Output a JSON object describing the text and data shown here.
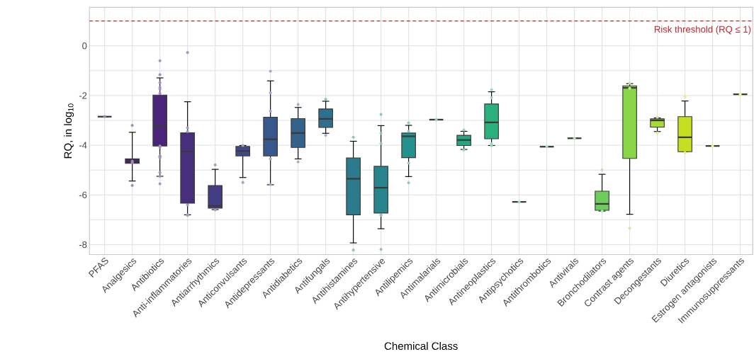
{
  "chart_data": {
    "type": "box",
    "xlabel": "Chemical Class",
    "ylabel": "RQ, in log$_{10}$",
    "categories": [
      "PFAS",
      "Analgesics",
      "Antibiotics",
      "Anti-inflammatories",
      "Antiarrhythmics",
      "Anticonvulsants",
      "Antidepressants",
      "Antidiabetics",
      "Antifungals",
      "Antihistamines",
      "Antihypertensive",
      "Antilipemics",
      "Antimalarials",
      "Antimicrobials",
      "Antineoplastics",
      "Antipsychotics",
      "Antithrombotics",
      "Antivirals",
      "Bronchodilators",
      "Contrast agents",
      "Decongestants",
      "Diuretics",
      "Estrogen antagonists",
      "Immunosuppressants"
    ],
    "colors": [
      "#3a3a3a",
      "#481a6c",
      "#4a2479",
      "#472f7d",
      "#423d84",
      "#3e4a89",
      "#38578c",
      "#33638d",
      "#2e6f8e",
      "#2b7a8e",
      "#28858e",
      "#24918d",
      "#3a3a3a",
      "#21a784",
      "#2bb17e",
      "#3a3a3a",
      "#3a3a3a",
      "#3a3a3a",
      "#6ccd5a",
      "#89d548",
      "#a8db34",
      "#c6e021",
      "#3a3a3a",
      "#3a3a3a"
    ],
    "boxes": [
      {
        "low": -2.85,
        "q1": -2.85,
        "median": -2.85,
        "q3": -2.85,
        "high": -2.85
      },
      {
        "low": -5.44,
        "q1": -4.73,
        "median": -4.64,
        "q3": -4.55,
        "high": -3.48
      },
      {
        "low": -5.25,
        "q1": -4.03,
        "median": -3.23,
        "q3": -1.98,
        "high": -1.29
      },
      {
        "low": -6.8,
        "q1": -6.33,
        "median": -4.26,
        "q3": -3.5,
        "high": -2.25
      },
      {
        "low": -6.59,
        "q1": -6.53,
        "median": -6.44,
        "q3": -5.62,
        "high": -4.97
      },
      {
        "low": -5.3,
        "q1": -4.43,
        "median": -4.23,
        "q3": -4.05,
        "high": -4.01
      },
      {
        "low": -5.59,
        "q1": -4.43,
        "median": -3.76,
        "q3": -2.87,
        "high": -1.41
      },
      {
        "low": -4.55,
        "q1": -4.09,
        "median": -3.51,
        "q3": -2.93,
        "high": -2.48
      },
      {
        "low": -3.52,
        "q1": -3.28,
        "median": -2.94,
        "q3": -2.54,
        "high": -2.23
      },
      {
        "low": -7.93,
        "q1": -6.8,
        "median": -5.35,
        "q3": -4.51,
        "high": -3.84
      },
      {
        "low": -7.36,
        "q1": -6.73,
        "median": -5.71,
        "q3": -4.85,
        "high": -3.21
      },
      {
        "low": -5.26,
        "q1": -4.5,
        "median": -3.64,
        "q3": -3.51,
        "high": -3.2
      },
      {
        "low": -2.97,
        "q1": -2.97,
        "median": -2.97,
        "q3": -2.97,
        "high": -2.97
      },
      {
        "low": -4.17,
        "q1": -4.01,
        "median": -3.79,
        "q3": -3.6,
        "high": -3.44
      },
      {
        "low": -4.01,
        "q1": -3.74,
        "median": -3.08,
        "q3": -2.34,
        "high": -1.85
      },
      {
        "low": -6.28,
        "q1": -6.28,
        "median": -6.28,
        "q3": -6.28,
        "high": -6.28
      },
      {
        "low": -4.06,
        "q1": -4.06,
        "median": -4.06,
        "q3": -4.06,
        "high": -4.06
      },
      {
        "low": -3.72,
        "q1": -3.72,
        "median": -3.72,
        "q3": -3.72,
        "high": -3.72
      },
      {
        "low": -6.65,
        "q1": -6.62,
        "median": -6.36,
        "q3": -5.85,
        "high": -5.17
      },
      {
        "low": -6.78,
        "q1": -4.53,
        "median": -1.69,
        "q3": -1.61,
        "high": -1.52
      },
      {
        "low": -3.45,
        "q1": -3.27,
        "median": -3.0,
        "q3": -2.94,
        "high": -2.9
      },
      {
        "low": -4.26,
        "q1": -4.26,
        "median": -3.68,
        "q3": -2.85,
        "high": -2.22
      },
      {
        "low": -4.03,
        "q1": -4.03,
        "median": -4.03,
        "q3": -4.03,
        "high": -4.03
      },
      {
        "low": -1.95,
        "q1": -1.95,
        "median": -1.95,
        "q3": -1.95,
        "high": -1.95
      }
    ],
    "series": [
      {
        "type": "scatter",
        "marker": "circle",
        "x": [
          "PFAS",
          "Analgesics",
          "Analgesics",
          "Analgesics",
          "Analgesics",
          "Antibiotics",
          "Antibiotics",
          "Antibiotics",
          "Antibiotics",
          "Antibiotics",
          "Antibiotics",
          "Antibiotics",
          "Antibiotics",
          "Antibiotics",
          "Antibiotics",
          "Antibiotics",
          "Antibiotics",
          "Antibiotics",
          "Antibiotics",
          "Anti-inflammatories",
          "Anti-inflammatories",
          "Anti-inflammatories",
          "Anti-inflammatories",
          "Anti-inflammatories",
          "Anti-inflammatories",
          "Antiarrhythmics",
          "Antiarrhythmics",
          "Anticonvulsants",
          "Anticonvulsants",
          "Antidepressants",
          "Antidepressants",
          "Antidepressants",
          "Antidepressants",
          "Antidepressants",
          "Antidiabetics",
          "Antidiabetics",
          "Antifungals",
          "Antifungals",
          "Antihistamines",
          "Antihistamines",
          "Antihypertensive",
          "Antihypertensive",
          "Antihypertensive",
          "Antihypertensive",
          "Antihypertensive",
          "Antihypertensive",
          "Antilipemics",
          "Antilipemics",
          "Antilipemics",
          "Antilipemics",
          "Antimalarials",
          "Antimicrobials",
          "Antimicrobials",
          "Antineoplastics",
          "Antineoplastics",
          "Antineoplastics",
          "Antineoplastics",
          "Antipsychotics",
          "Antithrombotics",
          "Antivirals",
          "Bronchodilators",
          "Bronchodilators",
          "Contrast agents",
          "Contrast agents",
          "Contrast agents",
          "Decongestants",
          "Decongestants",
          "Diuretics",
          "Diuretics",
          "Estrogen antagonists",
          "Immunosuppressants"
        ],
        "values": [
          -2.85,
          -3.2,
          -4.64,
          -4.7,
          -5.62,
          -0.6,
          -1.16,
          -1.48,
          -1.67,
          -1.74,
          -1.91,
          -4.03,
          -4.08,
          -4.43,
          -4.46,
          -4.5,
          -5.1,
          -5.25,
          -5.55,
          -0.27,
          -3.3,
          -3.45,
          -6.4,
          -6.8,
          -6.82,
          -4.79,
          -6.6,
          -4.01,
          -5.5,
          -1.02,
          -1.89,
          -2.63,
          -4.55,
          -5.58,
          -2.36,
          -4.67,
          -2.15,
          -3.6,
          -3.68,
          -8.22,
          -2.76,
          -3.52,
          -3.93,
          -6.8,
          -6.82,
          -8.19,
          -3.1,
          -3.44,
          -4.72,
          -5.51,
          -2.97,
          -3.39,
          -4.19,
          -1.77,
          -2.09,
          -3.94,
          -4.02,
          -6.28,
          -4.06,
          -3.72,
          -4.99,
          -6.65,
          -1.5,
          -1.71,
          -7.34,
          -2.87,
          -3.5,
          -2.05,
          -4.3,
          -4.03,
          -1.95
        ],
        "colors": [
          "#a284ad",
          "#a38cb5",
          "#a38cb5",
          "#a38cb5",
          "#a38cb5",
          "#a491bc",
          "#a491bc",
          "#a491bc",
          "#a491bc",
          "#a491bc",
          "#a491bc",
          "#a491bc",
          "#a491bc",
          "#a491bc",
          "#a491bc",
          "#a491bc",
          "#a491bc",
          "#a491bc",
          "#a491bc",
          "#a397be",
          "#a397be",
          "#a397be",
          "#a397be",
          "#a397be",
          "#a397be",
          "#a09ec1",
          "#a09ec1",
          "#9ea4c4",
          "#9ea4c4",
          "#9babc5",
          "#9babc5",
          "#9babc5",
          "#9babc5",
          "#9babc5",
          "#99b1c6",
          "#99b1c6",
          "#96b7c6",
          "#96b7c6",
          "#95bcc6",
          "#95bcc6",
          "#93c2c6",
          "#93c2c6",
          "#93c2c6",
          "#93c2c6",
          "#93c2c6",
          "#93c2c6",
          "#91c8c6",
          "#91c8c6",
          "#91c8c6",
          "#91c8c6",
          "#8fcdc4",
          "#90d3c1",
          "#90d3c1",
          "#95d8be",
          "#95d8be",
          "#95d8be",
          "#95d8be",
          "#9fddb9",
          "#a8e2b4",
          "#afe4b0",
          "#b5e6ac",
          "#b5e6ac",
          "#c4eaa3",
          "#c4eaa3",
          "#c4eaa3",
          "#d3ed99",
          "#d3ed99",
          "#e2ef90",
          "#e2ef90",
          "#f0f18b",
          "#fef392"
        ]
      }
    ],
    "ylim": [
      -8.4,
      1.55
    ],
    "yticks": [
      -8,
      {
        "value": -7,
        "label": null
      },
      -6,
      {
        "value": -5,
        "label": null
      },
      -4,
      {
        "value": -3,
        "label": null
      },
      -2,
      {
        "value": -1,
        "label": null
      },
      0,
      {
        "value": 1,
        "label": null
      }
    ],
    "grid": true,
    "ref_lines": [
      {
        "axis": "y",
        "value": 1,
        "label": "Risk threshold (RQ ≤ 1)",
        "color": "#c0272d",
        "line_style": "dashed"
      }
    ]
  }
}
